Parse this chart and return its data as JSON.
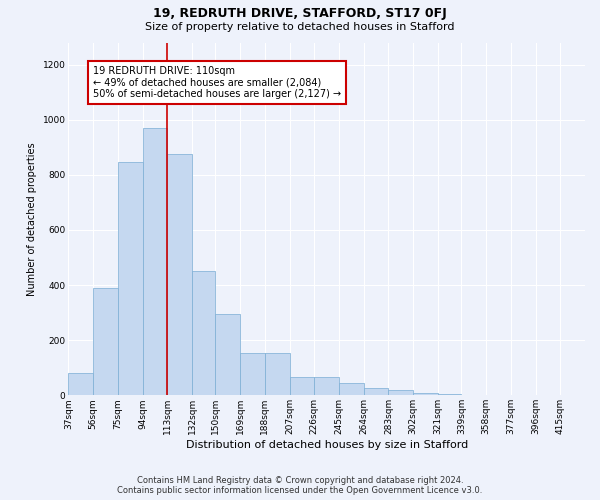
{
  "title1": "19, REDRUTH DRIVE, STAFFORD, ST17 0FJ",
  "title2": "Size of property relative to detached houses in Stafford",
  "xlabel": "Distribution of detached houses by size in Stafford",
  "ylabel": "Number of detached properties",
  "footer1": "Contains HM Land Registry data © Crown copyright and database right 2024.",
  "footer2": "Contains public sector information licensed under the Open Government Licence v3.0.",
  "annotation_line1": "19 REDRUTH DRIVE: 110sqm",
  "annotation_line2": "← 49% of detached houses are smaller (2,084)",
  "annotation_line3": "50% of semi-detached houses are larger (2,127) →",
  "bar_color": "#c5d8f0",
  "bar_edge_color": "#7aadd4",
  "red_line_x": 113,
  "categories": [
    "37sqm",
    "56sqm",
    "75sqm",
    "94sqm",
    "113sqm",
    "132sqm",
    "150sqm",
    "169sqm",
    "188sqm",
    "207sqm",
    "226sqm",
    "245sqm",
    "264sqm",
    "283sqm",
    "302sqm",
    "321sqm",
    "339sqm",
    "358sqm",
    "377sqm",
    "396sqm",
    "415sqm"
  ],
  "bin_edges": [
    37,
    56,
    75,
    94,
    113,
    132,
    150,
    169,
    188,
    207,
    226,
    245,
    264,
    283,
    302,
    321,
    339,
    358,
    377,
    396,
    415,
    434
  ],
  "values": [
    80,
    390,
    845,
    970,
    875,
    450,
    295,
    155,
    155,
    65,
    65,
    45,
    28,
    20,
    8,
    4,
    2,
    1,
    1,
    0,
    0
  ],
  "ylim": [
    0,
    1280
  ],
  "yticks": [
    0,
    200,
    400,
    600,
    800,
    1000,
    1200
  ],
  "background_color": "#eef2fb",
  "plot_background": "#eef2fb",
  "grid_color": "#ffffff",
  "annotation_box_color": "#ffffff",
  "annotation_box_edge": "#cc0000",
  "red_line_color": "#cc0000",
  "title1_fontsize": 9,
  "title2_fontsize": 8,
  "xlabel_fontsize": 8,
  "ylabel_fontsize": 7,
  "tick_fontsize": 6.5,
  "annotation_fontsize": 7,
  "footer_fontsize": 6
}
